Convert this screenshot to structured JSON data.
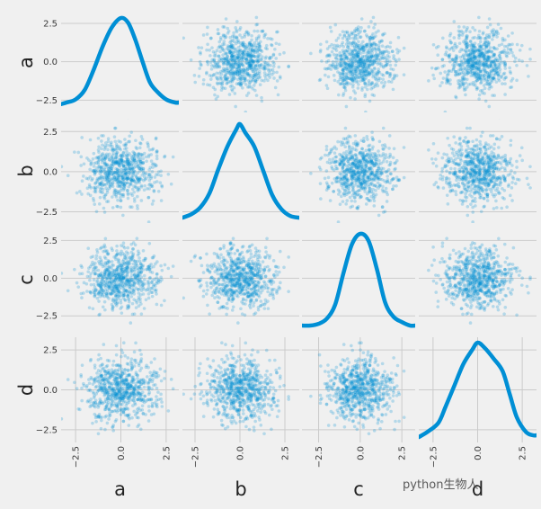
{
  "chart_data": {
    "type": "scatter",
    "variables": [
      "a",
      "b",
      "c",
      "d"
    ],
    "diagonal": "kde",
    "grid": true,
    "style": "fivethirtyeight",
    "colors": {
      "series": "#008fd5",
      "background": "#f0f0f0",
      "grid": "#cbcbcb"
    },
    "axis_ranges": {
      "a": [
        -3.3,
        3.2
      ],
      "b": [
        -3.2,
        3.3
      ],
      "c": [
        -3.5,
        3.3
      ],
      "d": [
        -3.3,
        3.3
      ]
    },
    "yticks": [
      -2.5,
      0.0,
      2.5
    ],
    "yticklabels": [
      "−2.5",
      "0.0",
      "2.5"
    ],
    "xticks": [
      -2.5,
      0.0,
      2.5
    ],
    "xticklabels": [
      "−2.5",
      "0.0",
      "2.5"
    ],
    "kde": {
      "a": {
        "x": [
          -3.3,
          -3.0,
          -2.5,
          -2.0,
          -1.5,
          -1.0,
          -0.5,
          0.0,
          0.4,
          0.8,
          1.2,
          1.6,
          2.0,
          2.5,
          3.0,
          3.2
        ],
        "density": [
          0.03,
          0.04,
          0.06,
          0.12,
          0.25,
          0.4,
          0.52,
          0.58,
          0.55,
          0.44,
          0.3,
          0.17,
          0.11,
          0.06,
          0.04,
          0.04
        ]
      },
      "b": {
        "x": [
          -3.2,
          -2.7,
          -2.2,
          -1.7,
          -1.2,
          -0.7,
          -0.2,
          0.0,
          0.3,
          0.8,
          1.3,
          1.8,
          2.3,
          2.8,
          3.3
        ],
        "density": [
          0.01,
          0.03,
          0.07,
          0.15,
          0.29,
          0.42,
          0.52,
          0.55,
          0.5,
          0.42,
          0.28,
          0.14,
          0.06,
          0.02,
          0.01
        ]
      },
      "c": {
        "x": [
          -3.5,
          -3.0,
          -2.5,
          -2.0,
          -1.5,
          -1.0,
          -0.5,
          0.0,
          0.5,
          1.0,
          1.5,
          2.0,
          2.5,
          3.0,
          3.3
        ],
        "density": [
          0.01,
          0.01,
          0.02,
          0.05,
          0.13,
          0.31,
          0.47,
          0.53,
          0.49,
          0.33,
          0.14,
          0.06,
          0.03,
          0.01,
          0.01
        ]
      },
      "d": {
        "x": [
          -3.3,
          -2.8,
          -2.2,
          -1.8,
          -1.3,
          -0.8,
          -0.3,
          0.0,
          0.4,
          0.9,
          1.4,
          1.8,
          2.2,
          2.7,
          3.1,
          3.3
        ],
        "density": [
          0.01,
          0.04,
          0.09,
          0.18,
          0.3,
          0.42,
          0.5,
          0.54,
          0.51,
          0.45,
          0.38,
          0.25,
          0.12,
          0.04,
          0.02,
          0.02
        ]
      }
    },
    "scatter": {
      "distribution": "standard normal, independent",
      "n_points": 1000,
      "alpha": 0.25,
      "marker_size": 3
    }
  },
  "watermark": "python生物人"
}
